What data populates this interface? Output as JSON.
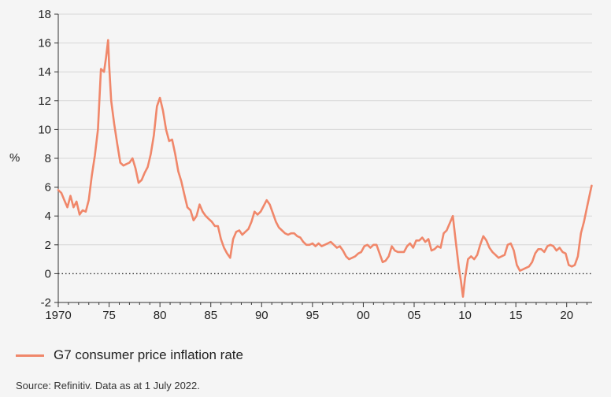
{
  "chart_data": {
    "type": "line",
    "title": "",
    "xlabel": "",
    "ylabel": "%",
    "xlim": [
      1970,
      2022.5
    ],
    "ylim": [
      -2,
      18
    ],
    "yticks": [
      -2,
      0,
      2,
      4,
      6,
      8,
      10,
      12,
      14,
      16,
      18
    ],
    "xticks": [
      1970,
      1975,
      1980,
      1985,
      1990,
      1995,
      2000,
      2005,
      2010,
      2015,
      2020
    ],
    "xtick_labels": [
      "1970",
      "75",
      "80",
      "85",
      "90",
      "95",
      "00",
      "05",
      "10",
      "15",
      "20"
    ],
    "reference_line": {
      "y": 0,
      "style": "dotted"
    },
    "series": [
      {
        "name": "G7 consumer price inflation rate",
        "color": "#f0876a",
        "x": [
          1970.0,
          1970.3,
          1970.6,
          1970.9,
          1971.2,
          1971.5,
          1971.8,
          1972.1,
          1972.4,
          1972.7,
          1973.0,
          1973.3,
          1973.6,
          1973.9,
          1974.2,
          1974.5,
          1974.7,
          1974.9,
          1975.0,
          1975.2,
          1975.5,
          1975.8,
          1976.1,
          1976.4,
          1976.7,
          1977.0,
          1977.3,
          1977.6,
          1977.9,
          1978.2,
          1978.5,
          1978.8,
          1979.1,
          1979.4,
          1979.7,
          1980.0,
          1980.3,
          1980.6,
          1980.9,
          1981.2,
          1981.5,
          1981.8,
          1982.1,
          1982.4,
          1982.7,
          1983.0,
          1983.3,
          1983.6,
          1983.9,
          1984.2,
          1984.5,
          1984.8,
          1985.1,
          1985.4,
          1985.7,
          1986.0,
          1986.3,
          1986.6,
          1986.9,
          1987.2,
          1987.5,
          1987.8,
          1988.1,
          1988.4,
          1988.7,
          1989.0,
          1989.3,
          1989.6,
          1989.9,
          1990.2,
          1990.5,
          1990.8,
          1991.1,
          1991.4,
          1991.7,
          1992.0,
          1992.3,
          1992.6,
          1992.9,
          1993.2,
          1993.5,
          1993.8,
          1994.1,
          1994.4,
          1994.7,
          1995.0,
          1995.3,
          1995.6,
          1995.9,
          1996.2,
          1996.5,
          1996.8,
          1997.1,
          1997.4,
          1997.7,
          1998.0,
          1998.3,
          1998.6,
          1998.9,
          1999.2,
          1999.5,
          1999.8,
          2000.1,
          2000.4,
          2000.7,
          2001.0,
          2001.3,
          2001.6,
          2001.9,
          2002.2,
          2002.5,
          2002.8,
          2003.1,
          2003.4,
          2003.7,
          2004.0,
          2004.3,
          2004.6,
          2004.9,
          2005.2,
          2005.5,
          2005.8,
          2006.1,
          2006.4,
          2006.7,
          2007.0,
          2007.3,
          2007.6,
          2007.9,
          2008.2,
          2008.5,
          2008.8,
          2009.1,
          2009.4,
          2009.6,
          2009.8,
          2010.0,
          2010.3,
          2010.6,
          2010.9,
          2011.2,
          2011.5,
          2011.8,
          2012.1,
          2012.4,
          2012.7,
          2013.0,
          2013.3,
          2013.6,
          2013.9,
          2014.2,
          2014.5,
          2014.8,
          2015.1,
          2015.4,
          2015.7,
          2016.0,
          2016.3,
          2016.6,
          2016.9,
          2017.2,
          2017.5,
          2017.8,
          2018.1,
          2018.4,
          2018.7,
          2019.0,
          2019.3,
          2019.6,
          2019.9,
          2020.2,
          2020.5,
          2020.8,
          2021.1,
          2021.4,
          2021.7,
          2022.0,
          2022.3,
          2022.45
        ],
        "values": [
          5.8,
          5.6,
          5.1,
          4.6,
          5.4,
          4.6,
          5.0,
          4.1,
          4.4,
          4.3,
          5.1,
          6.8,
          8.2,
          10.0,
          14.2,
          14.0,
          15.0,
          16.2,
          14.5,
          12.0,
          10.4,
          9.0,
          7.7,
          7.5,
          7.6,
          7.7,
          8.0,
          7.3,
          6.3,
          6.5,
          7.0,
          7.4,
          8.3,
          9.6,
          11.6,
          12.2,
          11.3,
          10.0,
          9.2,
          9.3,
          8.3,
          7.1,
          6.4,
          5.5,
          4.6,
          4.4,
          3.7,
          4.0,
          4.8,
          4.3,
          4.0,
          3.8,
          3.6,
          3.3,
          3.3,
          2.4,
          1.8,
          1.4,
          1.1,
          2.4,
          2.9,
          3.0,
          2.7,
          2.9,
          3.1,
          3.6,
          4.3,
          4.1,
          4.3,
          4.7,
          5.1,
          4.8,
          4.2,
          3.6,
          3.2,
          3.0,
          2.8,
          2.7,
          2.8,
          2.8,
          2.6,
          2.5,
          2.2,
          2.0,
          2.0,
          2.1,
          1.9,
          2.1,
          1.9,
          2.0,
          2.1,
          2.2,
          2.0,
          1.8,
          1.9,
          1.6,
          1.2,
          1.0,
          1.1,
          1.2,
          1.4,
          1.5,
          1.9,
          2.0,
          1.8,
          2.0,
          2.0,
          1.4,
          0.8,
          0.9,
          1.2,
          1.9,
          1.6,
          1.5,
          1.5,
          1.5,
          1.9,
          2.1,
          1.8,
          2.3,
          2.3,
          2.5,
          2.2,
          2.4,
          1.6,
          1.7,
          1.9,
          1.8,
          2.8,
          3.0,
          3.5,
          4.0,
          2.2,
          0.4,
          -0.5,
          -1.6,
          -0.3,
          1.0,
          1.2,
          1.0,
          1.3,
          2.0,
          2.6,
          2.3,
          1.8,
          1.5,
          1.3,
          1.1,
          1.2,
          1.3,
          2.0,
          2.1,
          1.6,
          0.6,
          0.2,
          0.3,
          0.4,
          0.5,
          0.8,
          1.4,
          1.7,
          1.7,
          1.5,
          1.9,
          2.0,
          1.9,
          1.6,
          1.8,
          1.5,
          1.4,
          0.6,
          0.5,
          0.6,
          1.2,
          2.8,
          3.6,
          4.6,
          5.6,
          6.1
        ]
      }
    ],
    "legend": {
      "position": "bottom-left",
      "label": "G7 consumer price inflation rate"
    }
  },
  "source_note": "Source: Refinitiv. Data as at 1 July 2022."
}
